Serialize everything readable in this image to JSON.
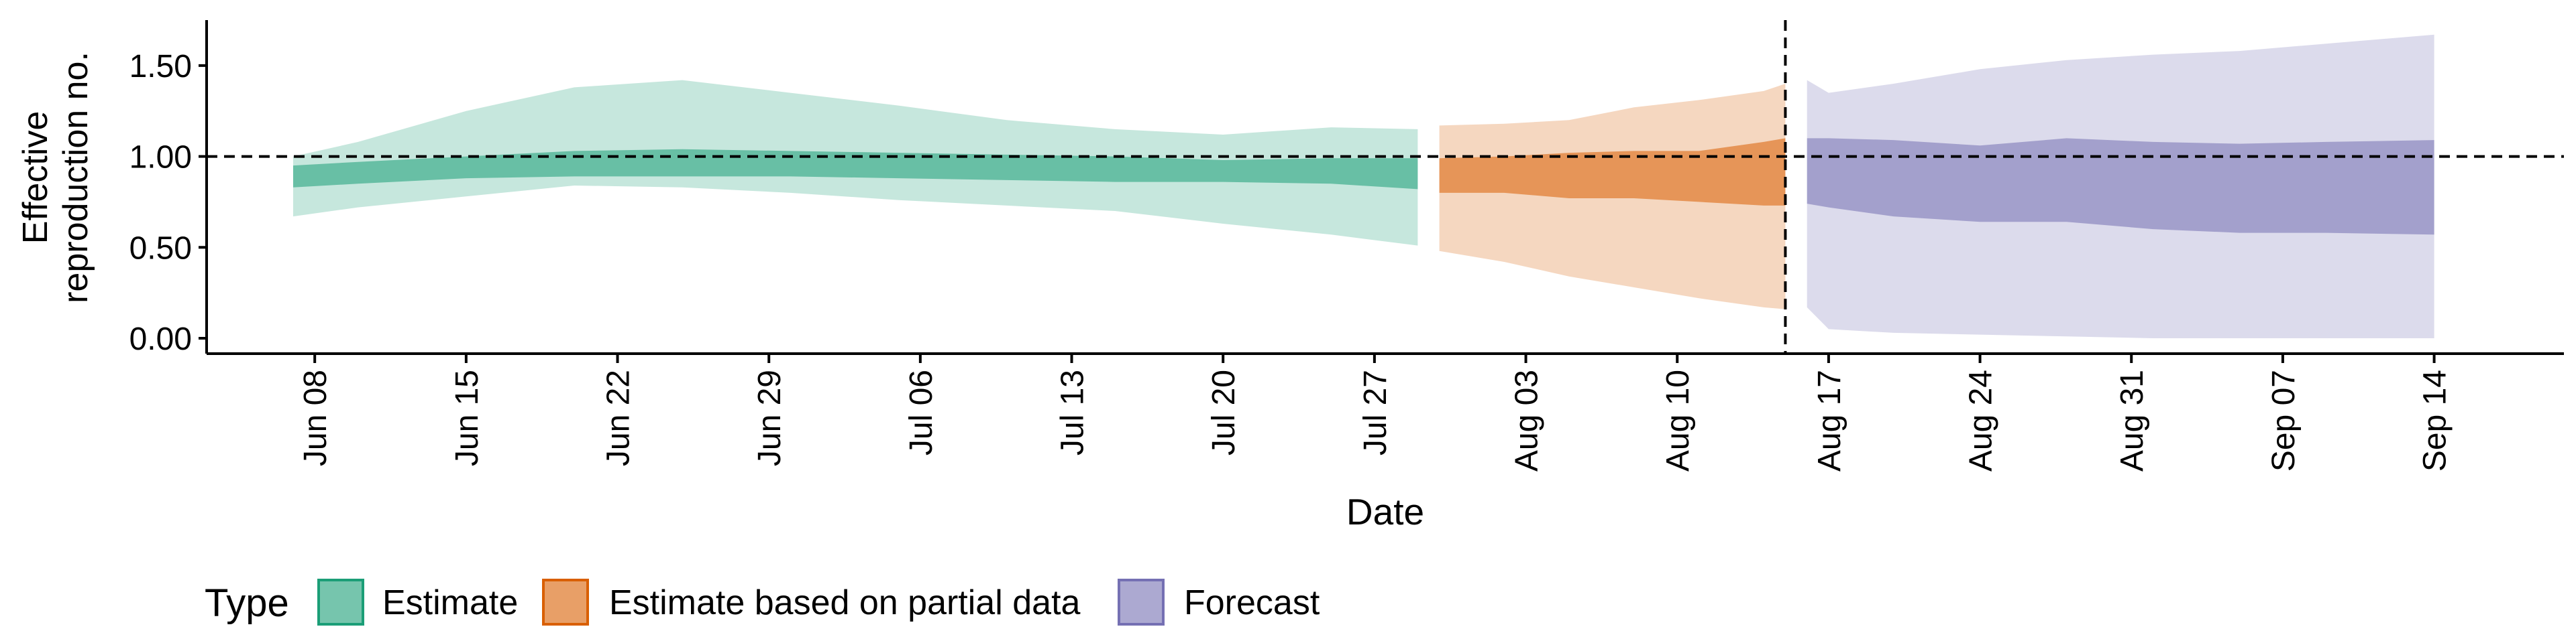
{
  "chart_data": {
    "type": "area",
    "xlabel": "Date",
    "ylabel_lines": [
      "Effective",
      "reproduction no."
    ],
    "ylim": [
      0,
      1.75
    ],
    "xlim": [
      "2020-06-03",
      "2020-09-20"
    ],
    "yticks": [
      0,
      0.5,
      1,
      1.5
    ],
    "ytick_labels": [
      "0.00",
      "0.50",
      "1.00",
      "1.50"
    ],
    "xticks": [
      "2020-06-08",
      "2020-06-15",
      "2020-06-22",
      "2020-06-29",
      "2020-07-06",
      "2020-07-13",
      "2020-07-20",
      "2020-07-27",
      "2020-08-03",
      "2020-08-10",
      "2020-08-17",
      "2020-08-24",
      "2020-08-31",
      "2020-09-07",
      "2020-09-14"
    ],
    "xtick_labels": [
      "Jun 08",
      "Jun 15",
      "Jun 22",
      "Jun 29",
      "Jul 06",
      "Jul 13",
      "Jul 20",
      "Jul 27",
      "Aug 03",
      "Aug 10",
      "Aug 17",
      "Aug 24",
      "Aug 31",
      "Sep 07",
      "Sep 14"
    ],
    "reference_line_y": 1.0,
    "reference_line_x": "2020-08-15",
    "grid": false,
    "legend_position": "bottom",
    "legend_title": "Type",
    "series": [
      {
        "name": "Estimate",
        "color": "#1b9e77",
        "x": [
          "2020-06-07",
          "2020-06-10",
          "2020-06-15",
          "2020-06-20",
          "2020-06-25",
          "2020-06-30",
          "2020-07-05",
          "2020-07-10",
          "2020-07-15",
          "2020-07-20",
          "2020-07-25",
          "2020-07-29"
        ],
        "upper_90": [
          1.0,
          1.08,
          1.25,
          1.38,
          1.42,
          1.35,
          1.28,
          1.2,
          1.15,
          1.12,
          1.16,
          1.15
        ],
        "upper_50": [
          0.95,
          0.97,
          1.0,
          1.03,
          1.04,
          1.03,
          1.02,
          1.01,
          1.0,
          0.98,
          0.99,
          0.99
        ],
        "lower_50": [
          0.83,
          0.85,
          0.88,
          0.89,
          0.89,
          0.89,
          0.88,
          0.87,
          0.86,
          0.86,
          0.85,
          0.82
        ],
        "lower_90": [
          0.67,
          0.72,
          0.78,
          0.84,
          0.83,
          0.8,
          0.76,
          0.73,
          0.7,
          0.63,
          0.57,
          0.51
        ]
      },
      {
        "name": "Estimate based on partial data",
        "color": "#d95f02",
        "x": [
          "2020-07-30",
          "2020-08-02",
          "2020-08-05",
          "2020-08-08",
          "2020-08-11",
          "2020-08-14",
          "2020-08-15"
        ],
        "upper_90": [
          1.17,
          1.18,
          1.2,
          1.27,
          1.31,
          1.36,
          1.4
        ],
        "upper_50": [
          0.99,
          1.0,
          1.02,
          1.03,
          1.03,
          1.08,
          1.1
        ],
        "lower_50": [
          0.8,
          0.8,
          0.77,
          0.77,
          0.75,
          0.73,
          0.73
        ],
        "lower_90": [
          0.48,
          0.42,
          0.34,
          0.28,
          0.22,
          0.17,
          0.16
        ]
      },
      {
        "name": "Forecast",
        "color": "#7570b3",
        "x": [
          "2020-08-16",
          "2020-08-17",
          "2020-08-20",
          "2020-08-24",
          "2020-08-28",
          "2020-09-01",
          "2020-09-05",
          "2020-09-09",
          "2020-09-14"
        ],
        "upper_90": [
          1.42,
          1.35,
          1.4,
          1.48,
          1.53,
          1.56,
          1.58,
          1.62,
          1.67
        ],
        "upper_50": [
          1.1,
          1.1,
          1.09,
          1.06,
          1.1,
          1.08,
          1.07,
          1.08,
          1.09
        ],
        "lower_50": [
          0.74,
          0.72,
          0.67,
          0.64,
          0.64,
          0.6,
          0.58,
          0.58,
          0.57
        ],
        "lower_90": [
          0.17,
          0.05,
          0.03,
          0.02,
          0.01,
          0.0,
          0.0,
          0.0,
          0.0
        ]
      }
    ]
  }
}
